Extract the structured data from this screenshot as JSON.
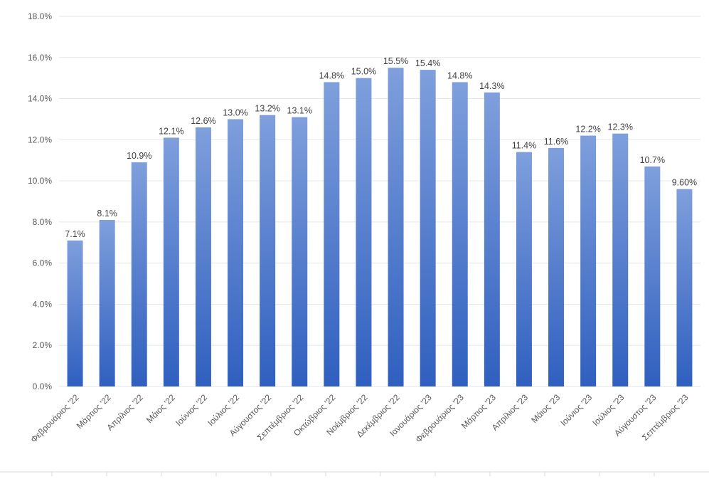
{
  "chart_data": {
    "type": "bar",
    "title": "",
    "xlabel": "",
    "ylabel": "",
    "ylim": [
      0,
      18
    ],
    "y_ticks": [
      0,
      2,
      4,
      6,
      8,
      10,
      12,
      14,
      16,
      18
    ],
    "y_tick_labels": [
      "0.0%",
      "2.0%",
      "4.0%",
      "6.0%",
      "8.0%",
      "10.0%",
      "12.0%",
      "14.0%",
      "16.0%",
      "18.0%"
    ],
    "grid": true,
    "legend": "none",
    "categories": [
      "Φεβρουάριος '22",
      "Μάρτιος '22",
      "Απρίλιος '22",
      "Μάιος '22",
      "Ιούνιος '22",
      "Ιούλιος '22",
      "Αύγουστος '22",
      "Σεπτέμβριος '22",
      "Οκτώβριος '22",
      "Νοέμβριος '22",
      "Δεκέμβριος '22",
      "Ιανουάριος '23",
      "Φεβρουάριος '23",
      "Μάρτιος '23",
      "Απρίλιος '23",
      "Μάιος '23",
      "Ιούνιος '23",
      "Ιούλιος '23",
      "Αύγουστος '23",
      "Σεπτέμβριος '23"
    ],
    "values": [
      7.1,
      8.1,
      10.9,
      12.1,
      12.6,
      13.0,
      13.2,
      13.1,
      14.8,
      15.0,
      15.5,
      15.4,
      14.8,
      14.3,
      11.4,
      11.6,
      12.2,
      12.3,
      10.7,
      9.6
    ],
    "data_labels": [
      "7.1%",
      "8.1%",
      "10.9%",
      "12.1%",
      "12.6%",
      "13.0%",
      "13.2%",
      "13.1%",
      "14.8%",
      "15.0%",
      "15.5%",
      "15.4%",
      "14.8%",
      "14.3%",
      "11.4%",
      "11.6%",
      "12.2%",
      "12.3%",
      "10.7%",
      "9.60%"
    ],
    "colors": {
      "bar_top": "#7f9fdc",
      "bar_bottom": "#2f5fbf",
      "grid": "#e6e6e6",
      "text": "#595959"
    }
  }
}
